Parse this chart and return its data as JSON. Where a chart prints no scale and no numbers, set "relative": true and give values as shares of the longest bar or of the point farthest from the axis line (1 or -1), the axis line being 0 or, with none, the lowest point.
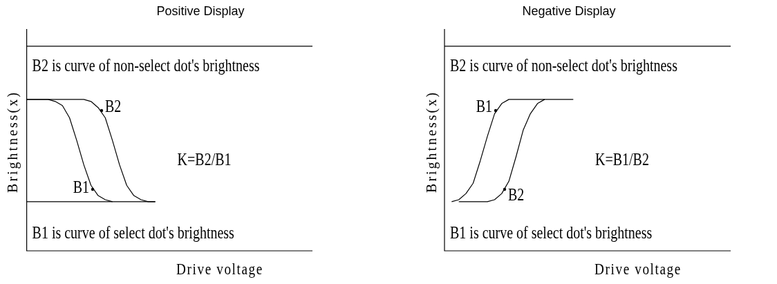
{
  "chart_data": [
    {
      "type": "line",
      "title": "Positive Display",
      "xlabel": "Drive voltage",
      "ylabel": "Brightness(x)",
      "relative": true,
      "tick_labels": false,
      "marker": "none",
      "categories": [
        null,
        null,
        null,
        null,
        null,
        null,
        null,
        null,
        null,
        null,
        null,
        null,
        null,
        null,
        null,
        null,
        null,
        null,
        null,
        null,
        null,
        null,
        null,
        null,
        null,
        null,
        null,
        null,
        null,
        null,
        null,
        null,
        null,
        null,
        null,
        null,
        null,
        null,
        null,
        null,
        null
      ],
      "series": [
        {
          "color": "#000000",
          "values": [
            1,
            1,
            1,
            1,
            1,
            1,
            1,
            1,
            1,
            1,
            1,
            1,
            1,
            1,
            1,
            1,
            1,
            1,
            1,
            1,
            1,
            1,
            1,
            1,
            1,
            1,
            1,
            1,
            1,
            1,
            1,
            1,
            1,
            1,
            1,
            1,
            1,
            1,
            1,
            1,
            1
          ]
        },
        {
          "color": "#000000",
          "values": [
            0.24,
            0.24,
            0.24,
            0.24,
            0.24,
            0.24,
            0.24,
            0.24,
            0.24,
            0.24,
            0.24,
            0.24,
            0.24,
            0.24,
            0.24,
            0.24,
            0.24,
            0.24,
            0.24,
            null,
            null,
            null,
            null,
            null,
            null,
            null,
            null,
            null,
            null,
            null,
            null,
            null,
            null,
            null,
            null,
            null,
            null,
            null,
            null,
            null,
            null
          ]
        },
        {
          "color": "#000000",
          "values": [
            0.74,
            0.74,
            0.74,
            0.74,
            0.73,
            0.71,
            0.65,
            0.54,
            0.42,
            0.32,
            0.27,
            0.25,
            0.24,
            null,
            null,
            null,
            null,
            null,
            null,
            null,
            null,
            null,
            null,
            null,
            null,
            null,
            null,
            null,
            null,
            null,
            null,
            null,
            null,
            null,
            null,
            null,
            null,
            null,
            null,
            null,
            null
          ]
        },
        {
          "color": "#000000",
          "values": [
            0.74,
            0.74,
            0.74,
            0.74,
            0.74,
            0.74,
            0.74,
            0.74,
            0.74,
            0.73,
            0.7,
            0.65,
            0.54,
            0.42,
            0.32,
            0.27,
            0.25,
            0.24,
            0.24,
            null,
            null,
            null,
            null,
            null,
            null,
            null,
            null,
            null,
            null,
            null,
            null,
            null,
            null,
            null,
            null,
            null,
            null,
            null,
            null,
            null,
            null
          ]
        }
      ],
      "annotations": [
        "B2 is curve of non-select dot's brightness",
        "B1 is curve of select dot's brightness",
        "K=B2/B1",
        "B2",
        "B1"
      ]
    },
    {
      "type": "line",
      "title": "Negative Display",
      "xlabel": "Drive voltage",
      "ylabel": "Brightness(x)",
      "relative": true,
      "tick_labels": false,
      "marker": "none",
      "categories": [
        null,
        null,
        null,
        null,
        null,
        null,
        null,
        null,
        null,
        null,
        null,
        null,
        null,
        null,
        null,
        null,
        null,
        null,
        null,
        null,
        null,
        null,
        null,
        null,
        null,
        null,
        null,
        null,
        null,
        null,
        null,
        null,
        null,
        null,
        null,
        null,
        null,
        null,
        null,
        null,
        null
      ],
      "series": [
        {
          "color": "#000000",
          "values": [
            1,
            1,
            1,
            1,
            1,
            1,
            1,
            1,
            1,
            1,
            1,
            1,
            1,
            1,
            1,
            1,
            1,
            1,
            1,
            1,
            1,
            1,
            1,
            1,
            1,
            1,
            1,
            1,
            1,
            1,
            1,
            1,
            1,
            1,
            1,
            1,
            1,
            1,
            1,
            1,
            1
          ]
        },
        {
          "color": "#000000",
          "values": [
            null,
            0.24,
            0.25,
            0.28,
            0.33,
            0.44,
            0.56,
            0.67,
            0.72,
            0.74,
            0.74,
            0.74,
            0.74,
            0.74,
            0.74,
            0.74,
            0.74,
            0.74,
            0.74,
            null,
            null,
            null,
            null,
            null,
            null,
            null,
            null,
            null,
            null,
            null,
            null,
            null,
            null,
            null,
            null,
            null,
            null,
            null,
            null,
            null,
            null
          ]
        },
        {
          "color": "#000000",
          "values": [
            null,
            null,
            0.24,
            0.24,
            0.24,
            0.24,
            0.24,
            0.25,
            0.28,
            0.34,
            0.46,
            0.59,
            0.67,
            0.72,
            0.74,
            null,
            null,
            null,
            null,
            null,
            null,
            null,
            null,
            null,
            null,
            null,
            null,
            null,
            null,
            null,
            null,
            null,
            null,
            null,
            null,
            null,
            null,
            null,
            null,
            null,
            null
          ]
        }
      ],
      "annotations": [
        "B2 is curve of non-select dot's brightness",
        "B1 is curve of select dot's brightness",
        "K=B1/B2",
        "B1",
        "B2"
      ]
    }
  ]
}
